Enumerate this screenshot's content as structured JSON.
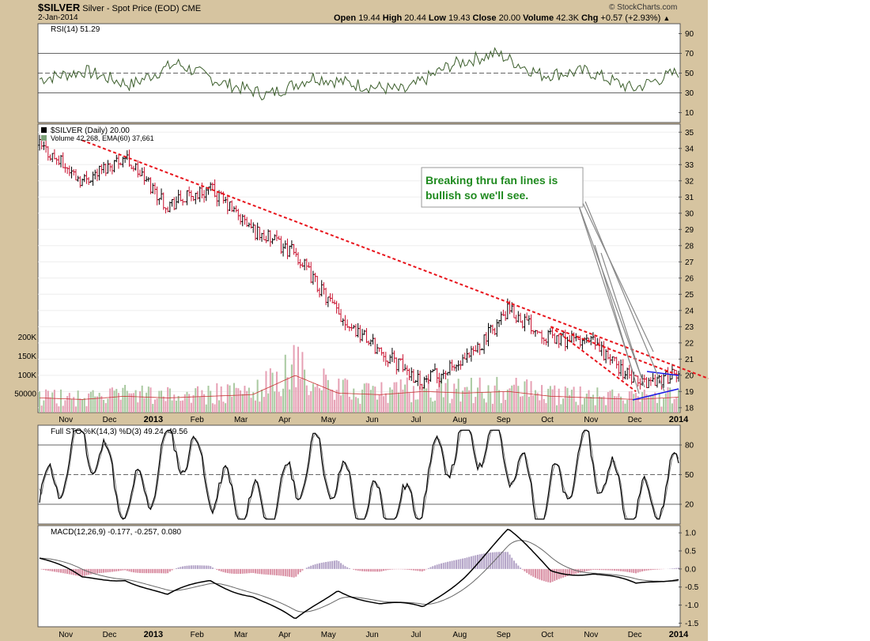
{
  "header": {
    "symbol": "$SILVER",
    "name": "Silver - Spot Price (EOD)",
    "exchange": "CME",
    "date": "2-Jan-2014",
    "brand": "© StockCharts.com",
    "ohlc": {
      "open_label": "Open",
      "open": "19.44",
      "high_label": "High",
      "high": "20.44",
      "low_label": "Low",
      "low": "19.43",
      "close_label": "Close",
      "close": "20.00",
      "volume_label": "Volume",
      "volume": "42.3K",
      "chg_label": "Chg",
      "chg": "+0.57 (+2.93%)"
    }
  },
  "annotation": {
    "text_line1": "Breaking thru fan lines is",
    "text_line2": "bullish so we'll see."
  },
  "colors": {
    "frame": "#d6c4a0",
    "up_bar": "#000000",
    "down_bar": "#c8102e",
    "trend_line": "#e8141c",
    "wedge_line": "#1a1ae6",
    "annotation_text": "#1f8a1f",
    "rsi_line": "#3b5e2b",
    "vol_up": "#a9c9a0",
    "vol_down": "#e6a0b4"
  },
  "chart_data": [
    {
      "type": "line",
      "title": "RSI(14) 51.29",
      "indicator": "RSI(14)",
      "last_value": 51.29,
      "ylim": [
        0,
        100
      ],
      "y_ticks": [
        "90",
        "70",
        "50",
        "30",
        "10"
      ],
      "reference_lines": [
        30,
        50,
        70
      ],
      "x": [
        "Nov 2012",
        "Dec 2012",
        "Jan 2013",
        "Feb 2013",
        "Mar 2013",
        "Apr 2013",
        "May 2013",
        "Jun 2013",
        "Jul 2013",
        "Aug 2013",
        "Sep 2013",
        "Oct 2013",
        "Nov 2013",
        "Dec 2013",
        "Jan 2014"
      ],
      "values": [
        44,
        52,
        38,
        60,
        40,
        28,
        46,
        38,
        32,
        58,
        70,
        48,
        52,
        34,
        51.29
      ]
    },
    {
      "type": "bar",
      "title": "$SILVER (Daily) 20.00",
      "subtitle": "Volume 42,268, EMA(60) 37,661",
      "series_name": "$SILVER (Daily)",
      "last_close": 20.0,
      "volume_last": 42268,
      "volume_ema60": 37661,
      "ylim": [
        17.7,
        35.5
      ],
      "y_ticks": [
        "35",
        "34",
        "33",
        "32",
        "31",
        "30",
        "29",
        "28",
        "27",
        "26",
        "25",
        "24",
        "23",
        "22",
        "21",
        "20",
        "19",
        "18"
      ],
      "volume_ticks": [
        "200K",
        "150K",
        "100K",
        "50000"
      ],
      "x_labels": [
        "Nov",
        "Dec",
        "2013",
        "Feb",
        "Mar",
        "Apr",
        "May",
        "Jun",
        "Jul",
        "Aug",
        "Sep",
        "Oct",
        "Nov",
        "Dec",
        "2014"
      ],
      "x": [
        "Oct 2012",
        "Nov 2012",
        "Dec 2012",
        "Jan 2013",
        "Feb 2013",
        "Mar 2013",
        "Apr 2013",
        "May 2013",
        "Jun 2013",
        "Jul 2013",
        "Aug 2013",
        "Sep 2013",
        "Oct 2013",
        "Nov 2013",
        "Dec 2013",
        "Jan 2014"
      ],
      "close_values": [
        34.2,
        32.0,
        33.5,
        30.5,
        31.5,
        29.0,
        27.5,
        23.8,
        21.5,
        19.6,
        20.8,
        24.0,
        22.3,
        22.0,
        19.5,
        20.0
      ],
      "volume_values": [
        40000,
        35000,
        45000,
        40000,
        45000,
        50000,
        110000,
        55000,
        50000,
        60000,
        55000,
        60000,
        45000,
        40000,
        35000,
        42268
      ],
      "trend_lines": [
        {
          "from": [
            "Nov 2012",
            34.5
          ],
          "to": [
            "Jan 2014",
            20.5
          ]
        },
        {
          "from": [
            "Oct 2013",
            23.0
          ],
          "to": [
            "Jan 2014",
            20.0
          ]
        },
        {
          "from": [
            "Oct 2013",
            23.0
          ],
          "to": [
            "Dec 2013",
            19.0
          ]
        }
      ]
    },
    {
      "type": "line",
      "title": "Full STO %K(14,3) %D(3) 49.24, 49.56",
      "indicator": "Full Stochastic",
      "series": [
        {
          "name": "%K(14,3)",
          "last_value": 49.24
        },
        {
          "name": "%D(3)",
          "last_value": 49.56
        }
      ],
      "ylim": [
        0,
        100
      ],
      "y_ticks": [
        "80",
        "50",
        "20"
      ],
      "reference_lines": [
        20,
        50,
        80
      ],
      "x": [
        "Nov 2012",
        "Dec 2012",
        "Jan 2013",
        "Feb 2013",
        "Mar 2013",
        "Apr 2013",
        "May 2013",
        "Jun 2013",
        "Jul 2013",
        "Aug 2013",
        "Sep 2013",
        "Oct 2013",
        "Nov 2013",
        "Dec 2013",
        "Jan 2014"
      ],
      "values": [
        20,
        90,
        15,
        85,
        30,
        10,
        70,
        20,
        10,
        80,
        88,
        15,
        75,
        10,
        49.24
      ]
    },
    {
      "type": "line",
      "title": "MACD(12,26,9) -0.177, -0.257, 0.080",
      "indicator": "MACD(12,26,9)",
      "series": [
        {
          "name": "MACD",
          "last_value": -0.177
        },
        {
          "name": "Signal",
          "last_value": -0.257
        },
        {
          "name": "Histogram",
          "last_value": 0.08
        }
      ],
      "ylim": [
        -1.6,
        1.2
      ],
      "y_ticks": [
        "1.0",
        "0.5",
        "0.0",
        "-0.5",
        "-1.0",
        "-1.5"
      ],
      "x_labels": [
        "Nov",
        "Dec",
        "2013",
        "Feb",
        "Mar",
        "Apr",
        "May",
        "Jun",
        "Jul",
        "Aug",
        "Sep",
        "Oct",
        "Nov",
        "Dec",
        "2014"
      ],
      "x": [
        "Oct 2012",
        "Nov 2012",
        "Dec 2012",
        "Jan 2013",
        "Feb 2013",
        "Mar 2013",
        "Apr 2013",
        "May 2013",
        "Jun 2013",
        "Jul 2013",
        "Aug 2013",
        "Sep 2013",
        "Oct 2013",
        "Nov 2013",
        "Dec 2013",
        "Jan 2014"
      ],
      "values": [
        0.3,
        -0.3,
        -0.2,
        -0.8,
        -0.3,
        -0.7,
        -1.5,
        -0.5,
        -1.0,
        -1.1,
        -0.1,
        1.0,
        0.0,
        -0.1,
        -0.5,
        -0.177
      ]
    }
  ]
}
